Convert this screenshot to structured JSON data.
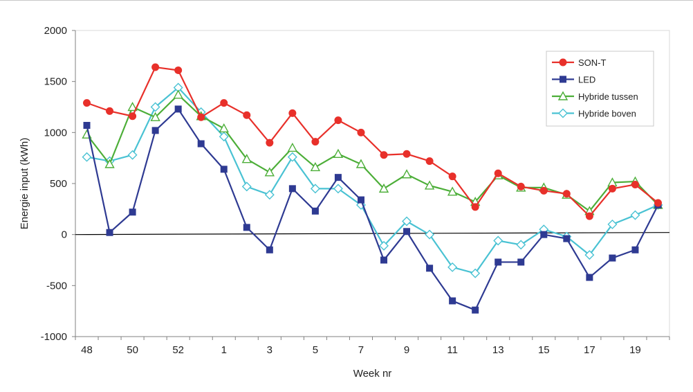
{
  "chart_data": {
    "type": "line",
    "title": "",
    "xlabel": "Week nr",
    "ylabel": "Energie input (kWh)",
    "ylim": [
      -1000,
      2000
    ],
    "yticks": [
      -1000,
      -500,
      0,
      500,
      1000,
      1500,
      2000
    ],
    "grid": false,
    "zero_line": true,
    "legend_position": "top-right",
    "x": [
      "48",
      "49",
      "50",
      "51",
      "52",
      "53",
      "1",
      "2",
      "3",
      "4",
      "5",
      "6",
      "7",
      "8",
      "9",
      "10",
      "11",
      "12",
      "13",
      "14",
      "15",
      "16",
      "17",
      "18",
      "19",
      "20"
    ],
    "xtick_labels": [
      "48",
      "",
      "50",
      "",
      "52",
      "",
      "1",
      "",
      "3",
      "",
      "5",
      "",
      "7",
      "",
      "9",
      "",
      "11",
      "",
      "13",
      "",
      "15",
      "",
      "17",
      "",
      "19",
      ""
    ],
    "series": [
      {
        "name": "SON-T",
        "color": "#e8302a",
        "marker": "circle",
        "values": [
          1290,
          1210,
          1160,
          1640,
          1610,
          1150,
          1290,
          1170,
          900,
          1190,
          910,
          1120,
          1000,
          780,
          790,
          720,
          570,
          270,
          600,
          470,
          430,
          400,
          180,
          450,
          490,
          310
        ]
      },
      {
        "name": "LED",
        "color": "#2e3a92",
        "marker": "square",
        "values": [
          1070,
          20,
          220,
          1020,
          1230,
          890,
          640,
          70,
          -150,
          450,
          230,
          560,
          340,
          -250,
          30,
          -330,
          -650,
          -740,
          -270,
          -270,
          0,
          -40,
          -420,
          -230,
          -150,
          290
        ]
      },
      {
        "name": "Hybride tussen",
        "color": "#4cae38",
        "marker": "triangle",
        "values": [
          980,
          690,
          1250,
          1150,
          1370,
          1160,
          1040,
          740,
          610,
          850,
          660,
          790,
          690,
          450,
          590,
          480,
          420,
          320,
          580,
          460,
          460,
          390,
          230,
          510,
          520,
          290
        ]
      },
      {
        "name": "Hybride boven",
        "color": "#49c2d3",
        "marker": "diamond",
        "values": [
          760,
          720,
          780,
          1250,
          1440,
          1200,
          960,
          470,
          390,
          760,
          450,
          450,
          290,
          -110,
          130,
          0,
          -320,
          -380,
          -60,
          -100,
          50,
          -20,
          -200,
          100,
          190,
          290
        ]
      }
    ]
  }
}
